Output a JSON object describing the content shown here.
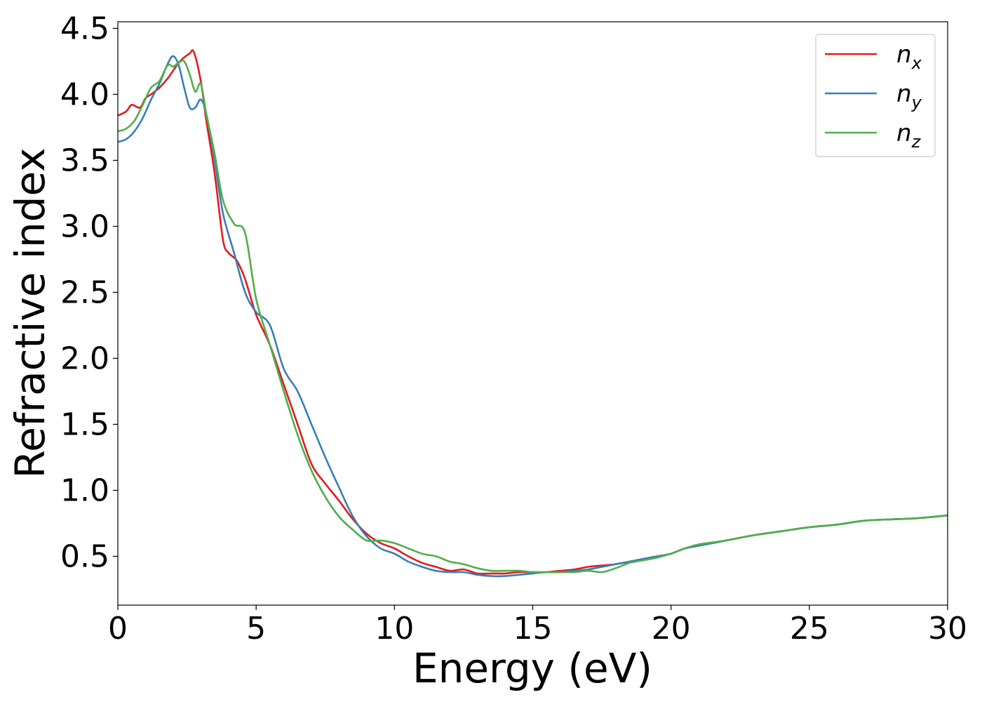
{
  "chart_data": {
    "type": "line",
    "title": "",
    "xlabel": "Energy (eV)",
    "ylabel": "Refractive index",
    "xlim": [
      0,
      30
    ],
    "ylim": [
      0.13,
      4.55
    ],
    "xticks": [
      0,
      5,
      10,
      15,
      20,
      25,
      30
    ],
    "xtick_labels": [
      "0",
      "5",
      "10",
      "15",
      "20",
      "25",
      "30"
    ],
    "yticks": [
      0.5,
      1.0,
      1.5,
      2.0,
      2.5,
      3.0,
      3.5,
      4.0,
      4.5
    ],
    "ytick_labels": [
      "0.5",
      "1.0",
      "1.5",
      "2.0",
      "2.5",
      "3.0",
      "3.5",
      "4.0",
      "4.5"
    ],
    "grid": false,
    "legend_position": "top-right",
    "series": [
      {
        "name": "n_x",
        "label_base": "n",
        "label_sub": "x",
        "color": "#e41a1c",
        "x": [
          0,
          0.3,
          0.5,
          0.8,
          1,
          1.2,
          1.5,
          1.8,
          2,
          2.2,
          2.4,
          2.6,
          2.75,
          3,
          3.2,
          3.5,
          3.8,
          4,
          4.3,
          4.6,
          5,
          5.5,
          6,
          6.5,
          7,
          7.5,
          8,
          8.5,
          9,
          9.5,
          10,
          10.5,
          11,
          11.5,
          12,
          12.5,
          13,
          13.5,
          14,
          14.5,
          15,
          15.5,
          16,
          16.5,
          17,
          17.5,
          18,
          18.5,
          19,
          19.5,
          20,
          20.5,
          21,
          22,
          23,
          24,
          25,
          26,
          27,
          28,
          29,
          30
        ],
        "y": [
          3.84,
          3.87,
          3.92,
          3.9,
          3.97,
          4.0,
          4.05,
          4.12,
          4.18,
          4.24,
          4.28,
          4.31,
          4.32,
          4.1,
          3.8,
          3.4,
          2.9,
          2.8,
          2.74,
          2.6,
          2.33,
          2.1,
          1.8,
          1.5,
          1.2,
          1.05,
          0.92,
          0.78,
          0.67,
          0.6,
          0.56,
          0.5,
          0.45,
          0.42,
          0.39,
          0.4,
          0.37,
          0.37,
          0.37,
          0.38,
          0.38,
          0.38,
          0.39,
          0.4,
          0.42,
          0.43,
          0.44,
          0.46,
          0.48,
          0.5,
          0.52,
          0.56,
          0.58,
          0.62,
          0.66,
          0.69,
          0.72,
          0.74,
          0.77,
          0.78,
          0.79,
          0.81
        ]
      },
      {
        "name": "n_y",
        "label_base": "n",
        "label_sub": "y",
        "color": "#377eb8",
        "x": [
          0,
          0.3,
          0.6,
          0.9,
          1.2,
          1.5,
          1.8,
          2,
          2.2,
          2.4,
          2.6,
          2.8,
          3,
          3.2,
          3.5,
          3.8,
          4.2,
          4.6,
          5,
          5.5,
          6,
          6.5,
          7,
          7.5,
          8,
          8.5,
          9,
          9.5,
          10,
          10.5,
          11,
          11.5,
          12,
          12.5,
          13,
          13.5,
          14,
          14.5,
          15,
          15.5,
          16,
          16.5,
          17,
          17.5,
          18,
          18.5,
          19,
          19.5,
          20,
          20.5,
          21,
          22,
          23,
          24,
          25,
          26,
          27,
          28,
          29,
          30
        ],
        "y": [
          3.64,
          3.66,
          3.72,
          3.82,
          3.96,
          4.08,
          4.23,
          4.29,
          4.22,
          4.05,
          3.9,
          3.9,
          3.96,
          3.85,
          3.5,
          3.1,
          2.8,
          2.5,
          2.35,
          2.25,
          1.92,
          1.75,
          1.5,
          1.25,
          1.02,
          0.8,
          0.65,
          0.56,
          0.52,
          0.46,
          0.42,
          0.39,
          0.38,
          0.38,
          0.36,
          0.35,
          0.35,
          0.36,
          0.37,
          0.38,
          0.38,
          0.39,
          0.4,
          0.42,
          0.44,
          0.46,
          0.48,
          0.5,
          0.52,
          0.56,
          0.58,
          0.62,
          0.66,
          0.69,
          0.72,
          0.74,
          0.77,
          0.78,
          0.79,
          0.81
        ]
      },
      {
        "name": "n_z",
        "label_base": "n",
        "label_sub": "z",
        "color": "#4daf4a",
        "x": [
          0,
          0.3,
          0.6,
          0.9,
          1.2,
          1.5,
          1.8,
          2,
          2.2,
          2.4,
          2.6,
          2.8,
          3,
          3.2,
          3.5,
          3.8,
          4.2,
          4.6,
          5,
          5.5,
          6,
          6.5,
          7,
          7.5,
          8,
          8.5,
          9,
          9.5,
          10,
          10.5,
          11,
          11.5,
          12,
          12.5,
          13,
          13.5,
          14,
          14.5,
          15,
          15.5,
          16,
          16.5,
          17,
          17.5,
          18,
          18.5,
          19,
          19.5,
          20,
          20.5,
          21,
          22,
          23,
          24,
          25,
          26,
          27,
          28,
          29,
          30
        ],
        "y": [
          3.72,
          3.74,
          3.8,
          3.92,
          4.05,
          4.1,
          4.22,
          4.21,
          4.24,
          4.25,
          4.15,
          4.02,
          4.08,
          3.85,
          3.55,
          3.2,
          3.02,
          2.95,
          2.45,
          2.1,
          1.75,
          1.42,
          1.15,
          0.95,
          0.8,
          0.7,
          0.62,
          0.62,
          0.6,
          0.56,
          0.52,
          0.5,
          0.46,
          0.44,
          0.41,
          0.39,
          0.39,
          0.39,
          0.38,
          0.38,
          0.38,
          0.38,
          0.39,
          0.38,
          0.41,
          0.45,
          0.47,
          0.49,
          0.52,
          0.56,
          0.59,
          0.62,
          0.66,
          0.69,
          0.72,
          0.74,
          0.77,
          0.78,
          0.79,
          0.81
        ]
      }
    ]
  }
}
